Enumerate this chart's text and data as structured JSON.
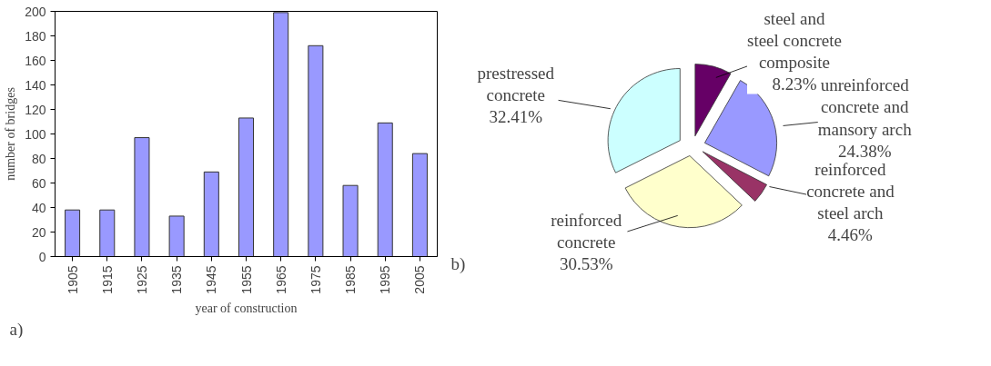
{
  "chart_data": [
    {
      "type": "bar",
      "xlabel": "year of construction",
      "ylabel": "number of bridges",
      "categories": [
        "1905",
        "1915",
        "1925",
        "1935",
        "1945",
        "1955",
        "1965",
        "1975",
        "1985",
        "1995",
        "2005"
      ],
      "values": [
        38,
        38,
        97,
        33,
        69,
        113,
        199,
        172,
        58,
        109,
        84
      ],
      "color": "#9999ff",
      "ylim": [
        0,
        200
      ],
      "yticks": [
        0,
        20,
        40,
        60,
        80,
        100,
        120,
        140,
        160,
        180,
        200
      ],
      "grid": false,
      "annotations": [
        "a)"
      ]
    },
    {
      "type": "pie",
      "categories": [
        "steel and\nsteel concrete\ncomposite",
        "unreinforced\nconcrete and\nmansory arch",
        "reinforced\nconcrete and\nsteel arch",
        "reinforced\nconcrete",
        "prestressed\nconcrete"
      ],
      "values": [
        8.23,
        24.38,
        4.46,
        30.53,
        32.41
      ],
      "colors": [
        "#660066",
        "#9999ff",
        "#993366",
        "#ffffcc",
        "#ccffff"
      ],
      "value_labels": [
        "8.23%",
        "24.38%",
        "4.46%",
        "30.53%",
        "32.41%"
      ],
      "annotations": [
        "b)"
      ]
    }
  ]
}
